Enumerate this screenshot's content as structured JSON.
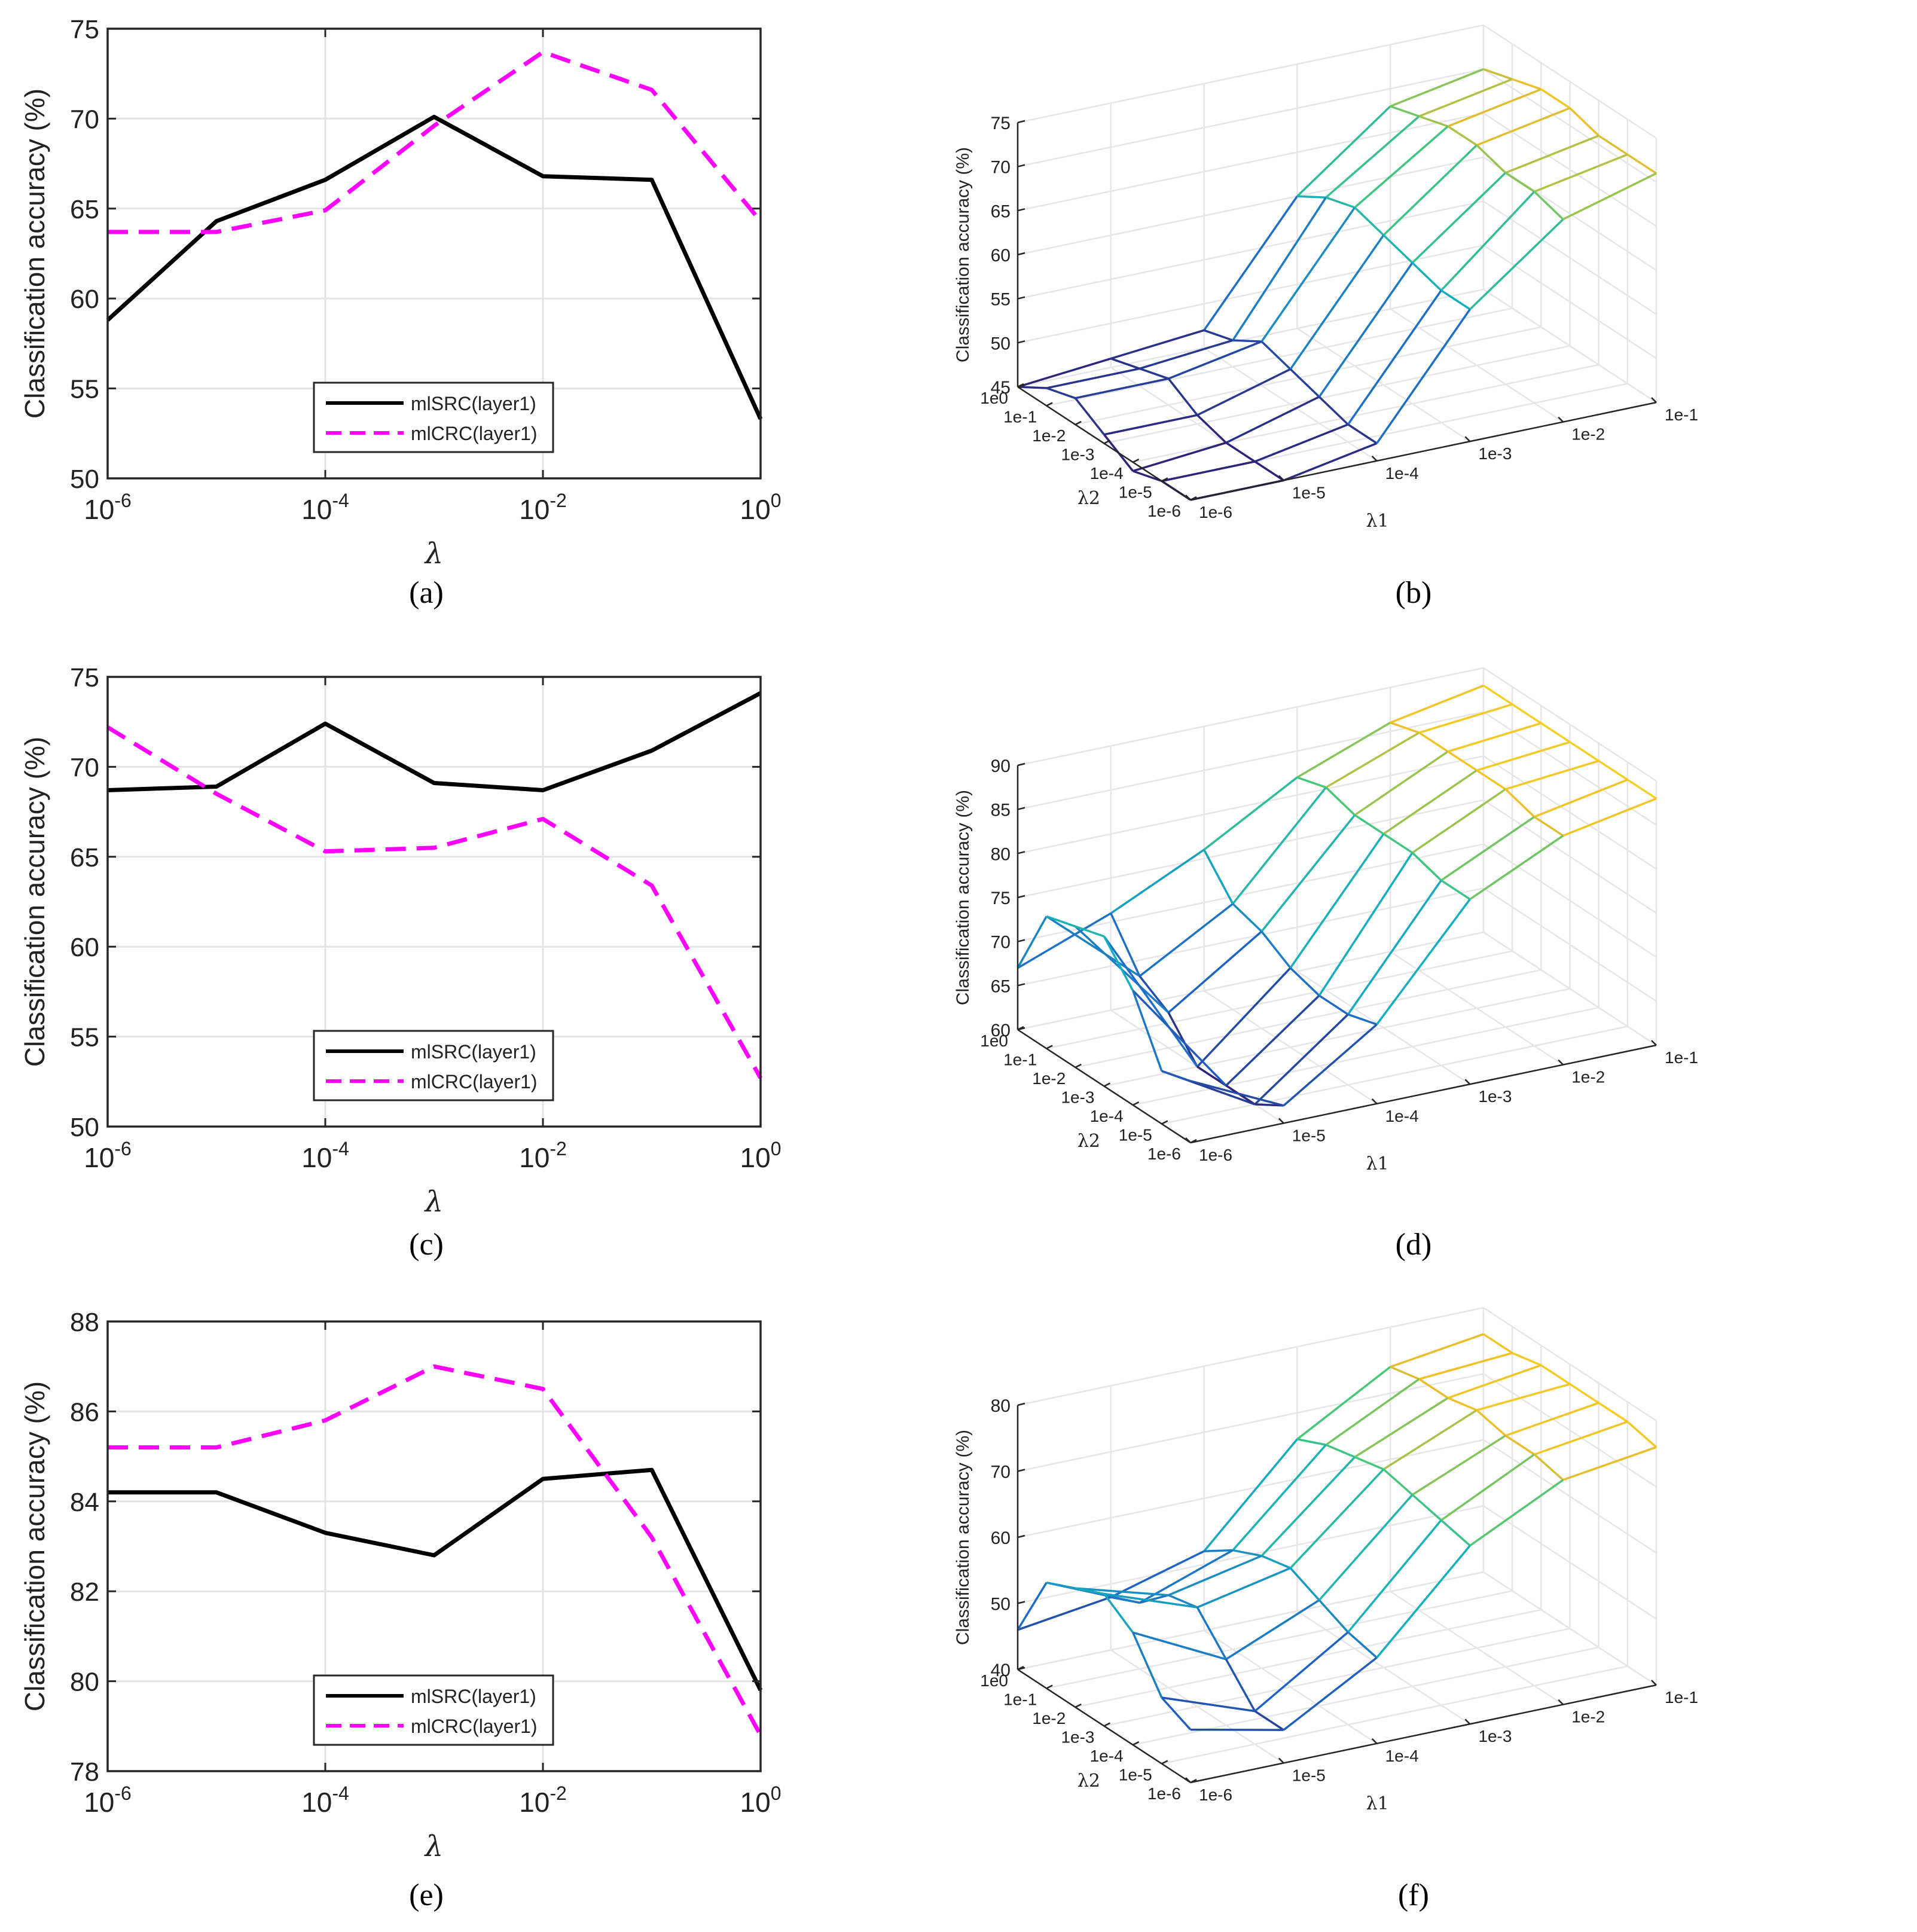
{
  "figure": {
    "captions": [
      "(a)",
      "(b)",
      "(c)",
      "(d)",
      "(e)",
      "(f)"
    ]
  },
  "chart_data": [
    {
      "id": "a",
      "type": "line",
      "xlabel": "λ",
      "ylabel": "Classification accuracy (%)",
      "xscale": "log",
      "xlim": [
        -6,
        0
      ],
      "ylim": [
        50,
        75
      ],
      "xticks": [
        -6,
        -4,
        -2,
        0
      ],
      "xtick_labels": [
        "10^-6",
        "10^-4",
        "10^-2",
        "10^0"
      ],
      "yticks": [
        50,
        55,
        60,
        65,
        70,
        75
      ],
      "legend_position": "bottom-center",
      "x": [
        -6,
        -5,
        -4,
        -3,
        -2,
        -1,
        0
      ],
      "series": [
        {
          "name": "mlSRC(layer1)",
          "color": "#000000",
          "style": "solid",
          "values": [
            58.8,
            64.3,
            66.6,
            70.1,
            66.8,
            66.6,
            53.3
          ]
        },
        {
          "name": "mlCRC(layer1)",
          "color": "#ff00ff",
          "style": "dashed",
          "values": [
            63.7,
            63.7,
            64.9,
            69.6,
            73.7,
            71.6,
            64.3
          ]
        }
      ]
    },
    {
      "id": "b",
      "type": "surface",
      "zlabel": "Classification accuracy (%)",
      "xlabel": "λ2",
      "ylabel": "λ1",
      "zlim": [
        45,
        75
      ],
      "zticks": [
        45,
        50,
        55,
        60,
        65,
        70,
        75
      ],
      "lambda2_ticks": [
        "1e0",
        "1e-1",
        "1e-2",
        "1e-3",
        "1e-4",
        "1e-5",
        "1e-6"
      ],
      "lambda1_ticks": [
        "1e-6",
        "1e-5",
        "1e-4",
        "1e-3",
        "1e-2",
        "1e-1"
      ],
      "z": [
        [
          45,
          46,
          47,
          60,
          68,
          70
        ],
        [
          47,
          47,
          48,
          62,
          69,
          71
        ],
        [
          48,
          48,
          50,
          63,
          70,
          72
        ],
        [
          46,
          46,
          49,
          62,
          70,
          72
        ],
        [
          44,
          45,
          48,
          61,
          69,
          71
        ],
        [
          45,
          45,
          47,
          60,
          69,
          71
        ],
        [
          45,
          45,
          47,
          60,
          68,
          71
        ]
      ]
    },
    {
      "id": "c",
      "type": "line",
      "xlabel": "λ",
      "ylabel": "Classification accuracy (%)",
      "xscale": "log",
      "xlim": [
        -6,
        0
      ],
      "ylim": [
        50,
        75
      ],
      "xticks": [
        -6,
        -4,
        -2,
        0
      ],
      "xtick_labels": [
        "10^-6",
        "10^-4",
        "10^-2",
        "10^0"
      ],
      "yticks": [
        50,
        55,
        60,
        65,
        70,
        75
      ],
      "legend_position": "bottom-center",
      "x": [
        -6,
        -5,
        -4,
        -3,
        -2,
        -1,
        0
      ],
      "series": [
        {
          "name": "mlSRC(layer1)",
          "color": "#000000",
          "style": "solid",
          "values": [
            68.7,
            68.9,
            72.4,
            69.1,
            68.7,
            70.9,
            74.1
          ]
        },
        {
          "name": "mlCRC(layer1)",
          "color": "#ff00ff",
          "style": "dashed",
          "values": [
            72.2,
            68.5,
            65.3,
            65.5,
            67.1,
            63.4,
            52.7
          ]
        }
      ]
    },
    {
      "id": "d",
      "type": "surface",
      "zlabel": "Classification accuracy (%)",
      "xlabel": "λ2",
      "ylabel": "λ1",
      "zlim": [
        60,
        90
      ],
      "zticks": [
        60,
        65,
        70,
        75,
        80,
        85,
        90
      ],
      "lambda2_ticks": [
        "1e0",
        "1e-1",
        "1e-2",
        "1e-3",
        "1e-4",
        "1e-5",
        "1e-6"
      ],
      "lambda1_ticks": [
        "1e-6",
        "1e-5",
        "1e-4",
        "1e-3",
        "1e-2",
        "1e-1"
      ],
      "z": [
        [
          67,
          71,
          76,
          82,
          86,
          88
        ],
        [
          75,
          66,
          72,
          83,
          87,
          88
        ],
        [
          76,
          64,
          71,
          82,
          87,
          88
        ],
        [
          77,
          60,
          69,
          82,
          87,
          88
        ],
        [
          73,
          60,
          68,
          82,
          87,
          88
        ],
        [
          66,
          60,
          68,
          81,
          86,
          88
        ],
        [
          67,
          62,
          69,
          81,
          86,
          88
        ]
      ]
    },
    {
      "id": "e",
      "type": "line",
      "xlabel": "λ",
      "ylabel": "Classification accuracy (%)",
      "xscale": "log",
      "xlim": [
        -6,
        0
      ],
      "ylim": [
        78,
        88
      ],
      "xticks": [
        -6,
        -4,
        -2,
        0
      ],
      "xtick_labels": [
        "10^-6",
        "10^-4",
        "10^-2",
        "10^0"
      ],
      "yticks": [
        78,
        80,
        82,
        84,
        86,
        88
      ],
      "legend_position": "bottom-center",
      "x": [
        -6,
        -5,
        -4,
        -3,
        -2,
        -1,
        0
      ],
      "series": [
        {
          "name": "mlSRC(layer1)",
          "color": "#000000",
          "style": "solid",
          "values": [
            84.2,
            84.2,
            83.3,
            82.8,
            84.5,
            84.7,
            79.8
          ]
        },
        {
          "name": "mlCRC(layer1)",
          "color": "#ff00ff",
          "style": "dashed",
          "values": [
            85.2,
            85.2,
            85.8,
            87.0,
            86.5,
            83.2,
            78.8
          ]
        }
      ]
    },
    {
      "id": "f",
      "type": "surface",
      "zlabel": "Classification accuracy (%)",
      "xlabel": "λ2",
      "ylabel": "λ1",
      "zlim": [
        40,
        80
      ],
      "zticks": [
        40,
        50,
        60,
        70,
        80
      ],
      "lambda2_ticks": [
        "1e0",
        "1e-1",
        "1e-2",
        "1e-3",
        "1e-4",
        "1e-5",
        "1e-6"
      ],
      "lambda1_ticks": [
        "1e-6",
        "1e-5",
        "1e-4",
        "1e-3",
        "1e-2",
        "1e-1"
      ],
      "z": [
        [
          46,
          48,
          52,
          66,
          74,
          76
        ],
        [
          56,
          50,
          55,
          68,
          75,
          76
        ],
        [
          58,
          54,
          57,
          69,
          75,
          77
        ],
        [
          60,
          55,
          58,
          70,
          76,
          77
        ],
        [
          57,
          50,
          56,
          69,
          75,
          77
        ],
        [
          50,
          45,
          54,
          68,
          75,
          77
        ],
        [
          48,
          45,
          53,
          67,
          74,
          76
        ]
      ]
    }
  ]
}
